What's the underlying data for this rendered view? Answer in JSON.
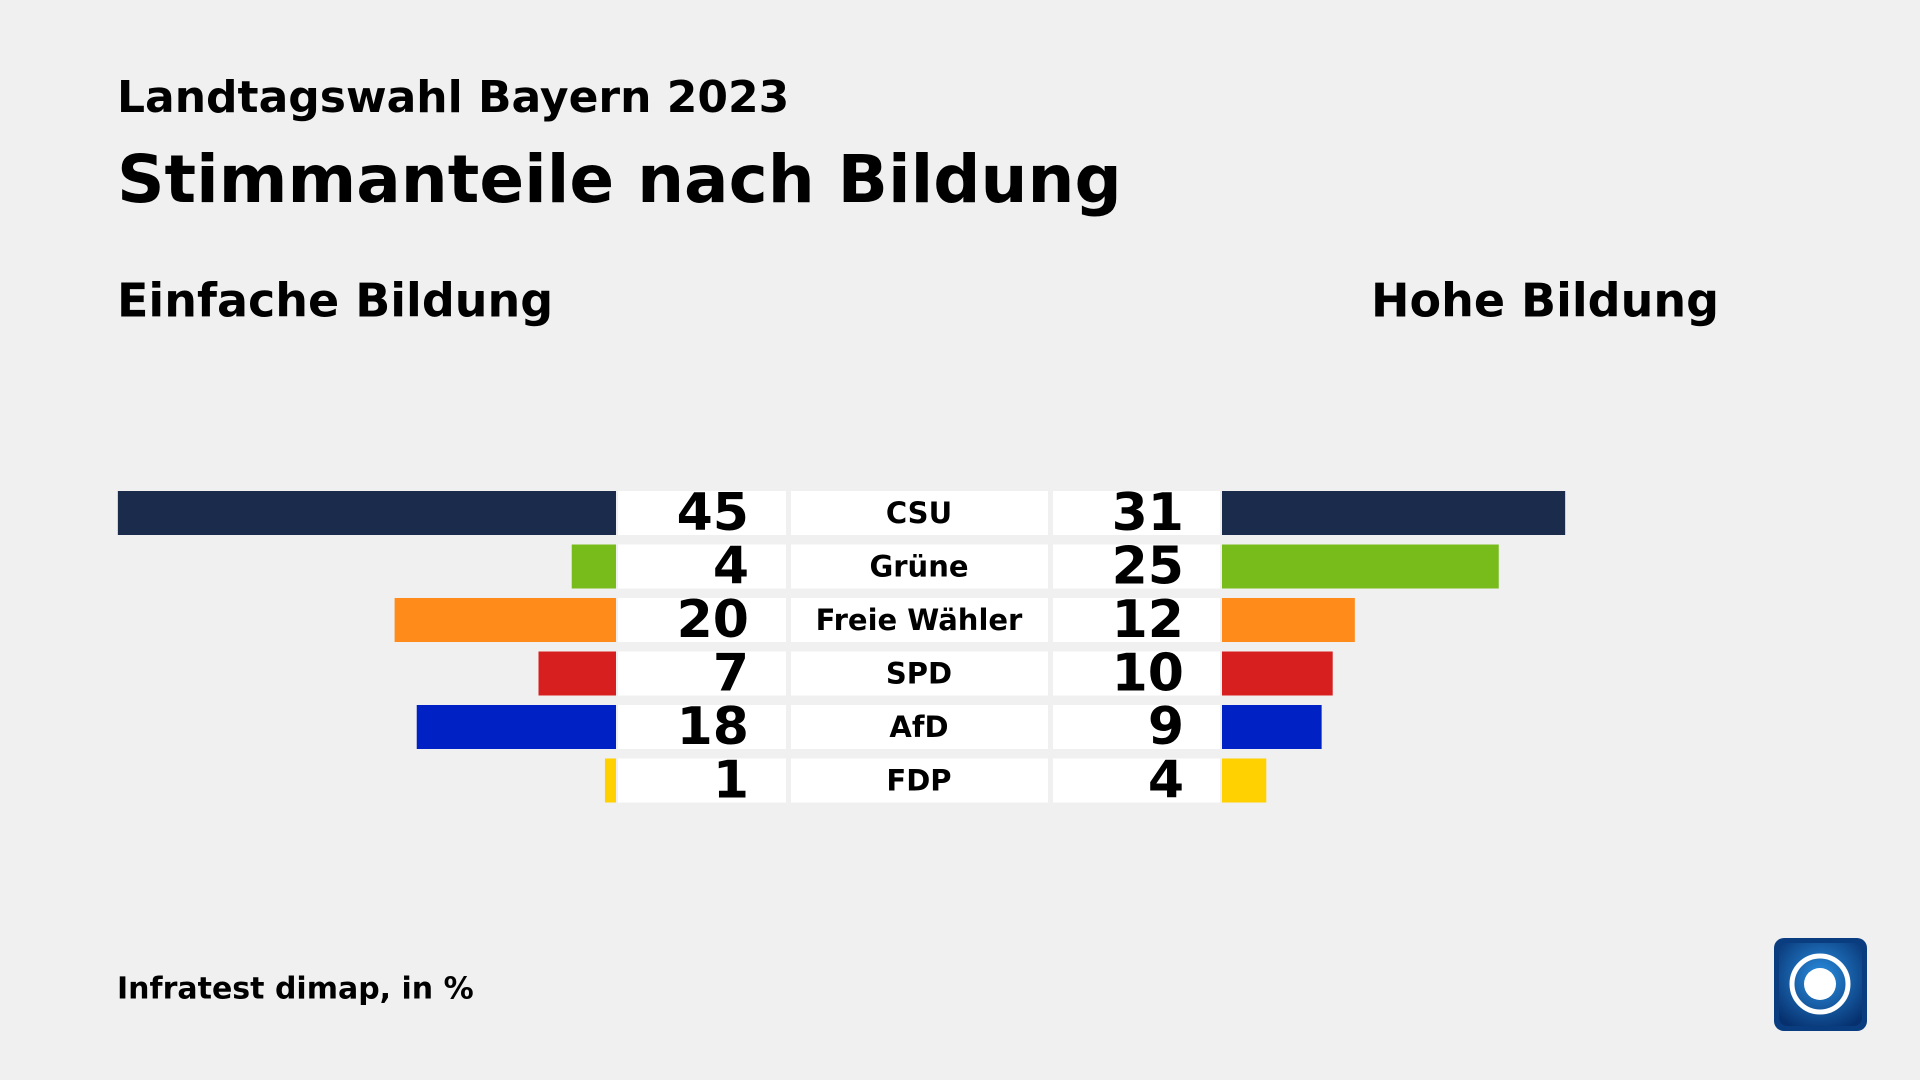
{
  "chart_data": {
    "type": "butterfly",
    "subtitle": "Landtagswahl Bayern 2023",
    "title": "Stimmanteile nach Bildung",
    "categories": [
      "CSU",
      "Grüne",
      "Freie Wähler",
      "SPD",
      "AfD",
      "FDP"
    ],
    "colors": [
      "#1b2b4b",
      "#78bc1c",
      "#ff8c1a",
      "#d71f1f",
      "#0021c4",
      "#ffd100"
    ],
    "series": [
      {
        "name": "Einfache Bildung",
        "values": [
          45,
          4,
          20,
          7,
          18,
          1
        ]
      },
      {
        "name": "Hohe Bildung",
        "values": [
          31,
          25,
          12,
          10,
          9,
          4
        ]
      }
    ],
    "source": "Infratest dimap, in %"
  }
}
